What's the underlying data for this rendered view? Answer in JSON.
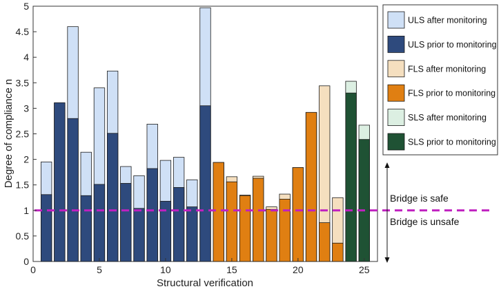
{
  "chart_data": {
    "type": "bar",
    "subtype": "overlaid-bars",
    "xlabel": "Structural verification",
    "ylabel": "Degree of compliance n",
    "xlim": [
      0,
      26
    ],
    "ylim": [
      0,
      5
    ],
    "xticks": [
      0,
      5,
      10,
      15,
      20,
      25
    ],
    "yticks": [
      0,
      0.5,
      1,
      1.5,
      2,
      2.5,
      3,
      3.5,
      4,
      4.5,
      5
    ],
    "x": [
      1,
      2,
      3,
      4,
      5,
      6,
      7,
      8,
      9,
      10,
      11,
      12,
      13,
      14,
      15,
      16,
      17,
      18,
      19,
      20,
      21,
      22,
      23,
      24,
      25
    ],
    "series": [
      {
        "name": "ULS after monitoring",
        "color": "#cfe0f6",
        "values": [
          1.95,
          3.1,
          4.6,
          2.14,
          3.4,
          3.73,
          1.86,
          1.68,
          2.69,
          1.98,
          2.04,
          1.6,
          4.97,
          null,
          null,
          null,
          null,
          null,
          null,
          null,
          null,
          null,
          null,
          null,
          null
        ]
      },
      {
        "name": "ULS prior to monitoring",
        "color": "#2e4a7d",
        "values": [
          1.31,
          3.11,
          2.8,
          1.29,
          1.51,
          2.51,
          1.53,
          1.04,
          1.82,
          1.18,
          1.45,
          1.07,
          3.05,
          null,
          null,
          null,
          null,
          null,
          null,
          null,
          null,
          null,
          null,
          null,
          null
        ]
      },
      {
        "name": "FLS after monitoring",
        "color": "#f5dfbf",
        "values": [
          null,
          null,
          null,
          null,
          null,
          null,
          null,
          null,
          null,
          null,
          null,
          null,
          null,
          1.94,
          1.66,
          1.3,
          1.67,
          1.07,
          1.32,
          1.84,
          2.92,
          3.44,
          1.25,
          null,
          null
        ]
      },
      {
        "name": "FLS prior to monitoring",
        "color": "#e07f12",
        "values": [
          null,
          null,
          null,
          null,
          null,
          null,
          null,
          null,
          null,
          null,
          null,
          null,
          null,
          1.94,
          1.56,
          1.29,
          1.63,
          1.02,
          1.22,
          1.84,
          2.92,
          0.76,
          0.36,
          null,
          null
        ]
      },
      {
        "name": "SLS after monitoring",
        "color": "#dcefe2",
        "values": [
          null,
          null,
          null,
          null,
          null,
          null,
          null,
          null,
          null,
          null,
          null,
          null,
          null,
          null,
          null,
          null,
          null,
          null,
          null,
          null,
          null,
          null,
          null,
          3.53,
          2.67
        ]
      },
      {
        "name": "SLS prior to monitoring",
        "color": "#1f5234",
        "values": [
          null,
          null,
          null,
          null,
          null,
          null,
          null,
          null,
          null,
          null,
          null,
          null,
          null,
          null,
          null,
          null,
          null,
          null,
          null,
          null,
          null,
          null,
          null,
          3.3,
          2.39
        ]
      }
    ],
    "threshold": {
      "value": 1,
      "color": "#c020c0",
      "style": "dashed"
    },
    "annotations": {
      "above": "Bridge is safe",
      "below": "Bridge is unsafe"
    },
    "legend": "right-outside"
  }
}
